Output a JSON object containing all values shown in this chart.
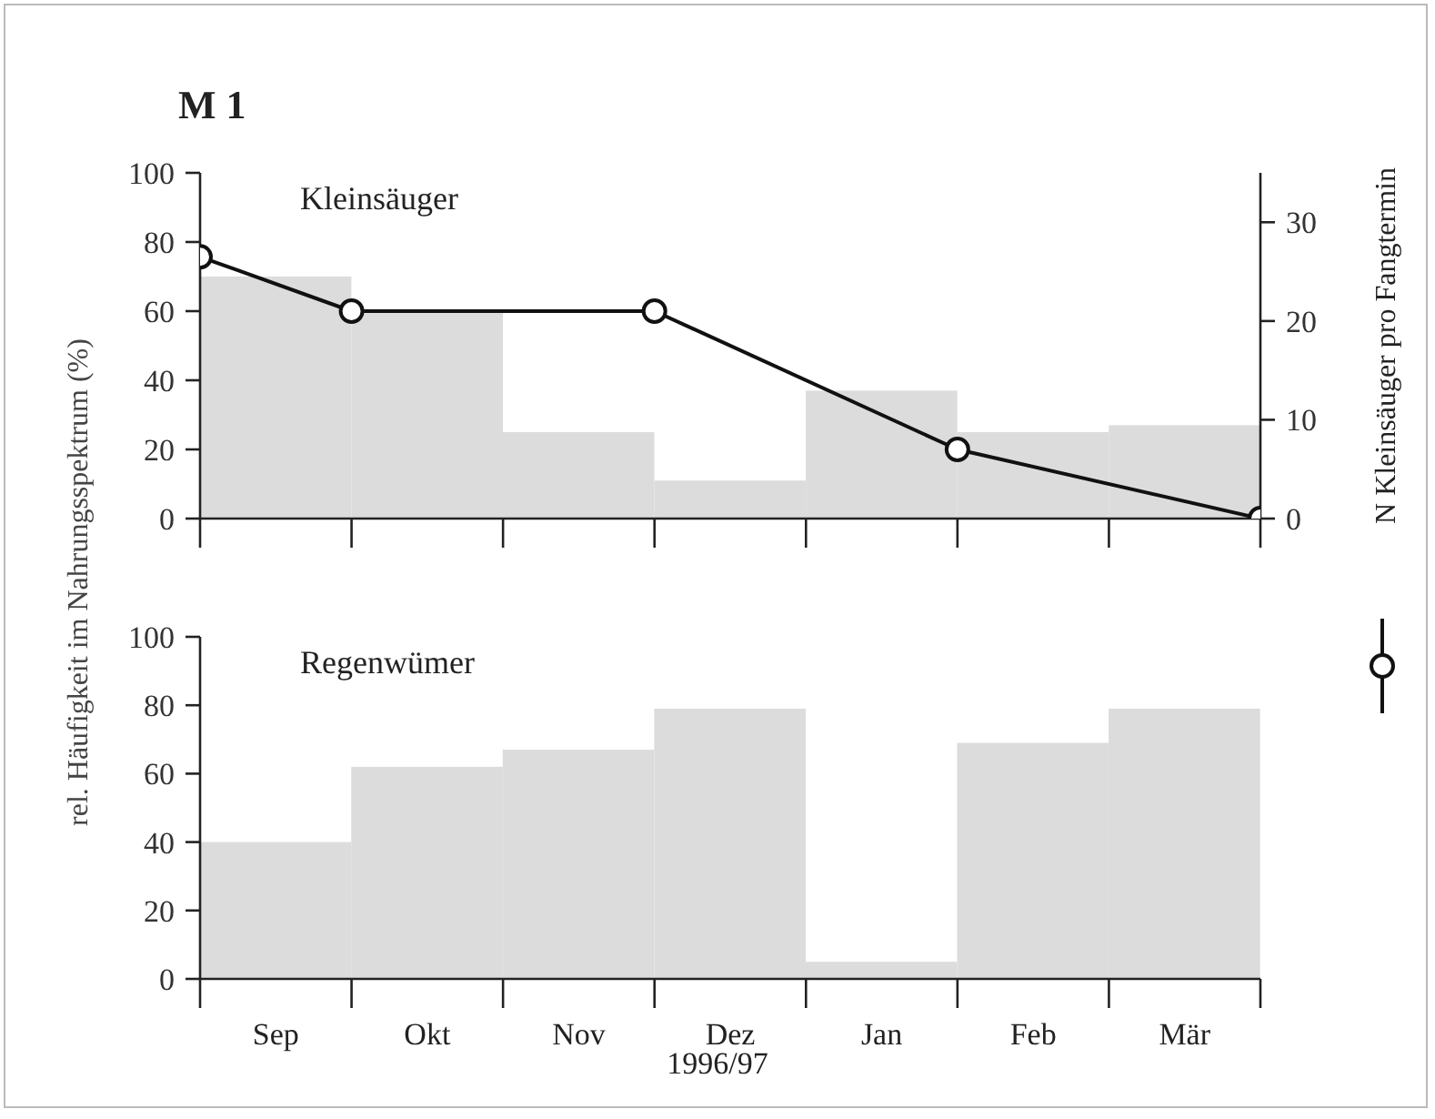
{
  "chart_data": [
    {
      "type": "bar",
      "title": "M 1",
      "ylabel": "rel. Häufigkeit im Nahrungsspektrum (%)",
      "y2label": "N Kleinsäuger pro Fangtermin",
      "x": [
        "1996-09-16",
        "1996-10-16",
        "1996-11-16",
        "1996-12-16",
        "1997-01-16",
        "1997-02-16",
        "1997-03-16"
      ],
      "xlim": [
        "1996-09-01",
        "1997-04-01"
      ],
      "xticks": [
        {
          "value": "1996-09-01",
          "label": null
        },
        {
          "value": "1996-10-01",
          "label": null
        },
        {
          "value": "1996-11-01",
          "label": null
        },
        {
          "value": "1996-12-01",
          "label": null
        },
        {
          "value": "1997-01-01",
          "label": null
        },
        {
          "value": "1997-02-01",
          "label": null
        },
        {
          "value": "1997-03-01",
          "label": null
        },
        {
          "value": "1997-04-01",
          "label": null
        }
      ],
      "series": [
        {
          "name": "Kleinsäuger",
          "color": "#dcdcdc",
          "values": [
            70,
            60,
            25,
            11,
            37,
            25,
            27
          ]
        },
        {
          "type": "line",
          "axis": "y2",
          "color": "#111111",
          "marker": "circle",
          "x": [
            "1996-09-01",
            "1996-10-01",
            "1996-12-01",
            "1997-02-01",
            "1997-04-01"
          ],
          "values": [
            26.5,
            21,
            21,
            7,
            0
          ]
        }
      ],
      "ylim": [
        0,
        100
      ],
      "yticks": [
        0,
        20,
        40,
        60,
        80,
        100
      ],
      "y2lim": [
        0,
        35
      ],
      "y2ticks": [
        0,
        10,
        20,
        30
      ],
      "tick_labels": "y"
    },
    {
      "type": "bar",
      "xlabel": "1996/97",
      "x": [
        "1996-09-16",
        "1996-10-16",
        "1996-11-16",
        "1996-12-16",
        "1997-01-16",
        "1997-02-16",
        "1997-03-16"
      ],
      "xlim": [
        "1996-09-01",
        "1997-04-01"
      ],
      "xticks": [
        {
          "value": "1996-09-01",
          "label": null
        },
        {
          "value": "1996-09-16",
          "label": "Sep"
        },
        {
          "value": "1996-10-01",
          "label": null
        },
        {
          "value": "1996-10-16",
          "label": "Okt"
        },
        {
          "value": "1996-11-01",
          "label": null
        },
        {
          "value": "1996-11-16",
          "label": "Nov"
        },
        {
          "value": "1996-12-01",
          "label": null
        },
        {
          "value": "1996-12-16",
          "label": "Dez"
        },
        {
          "value": "1997-01-01",
          "label": null
        },
        {
          "value": "1997-01-16",
          "label": "Jan"
        },
        {
          "value": "1997-02-01",
          "label": null
        },
        {
          "value": "1997-02-16",
          "label": "Feb"
        },
        {
          "value": "1997-03-01",
          "label": null
        },
        {
          "value": "1997-03-16",
          "label": "Mär"
        },
        {
          "value": "1997-04-01",
          "label": null
        }
      ],
      "series": [
        {
          "name": "Regenwümer",
          "color": "#dcdcdc",
          "values": [
            40,
            62,
            67,
            79,
            5,
            69,
            79
          ]
        }
      ],
      "ylim": [
        0,
        100
      ],
      "yticks": [
        0,
        20,
        40,
        60,
        80,
        100
      ]
    }
  ]
}
